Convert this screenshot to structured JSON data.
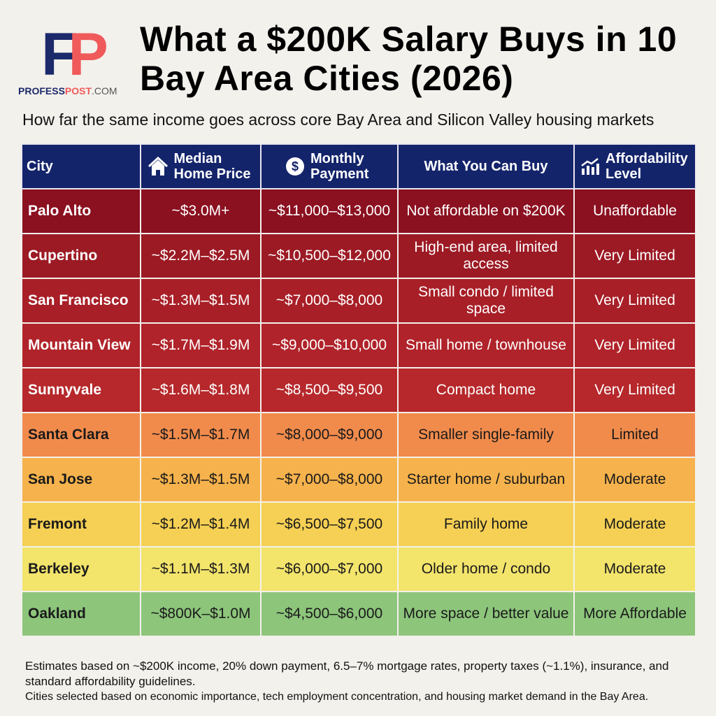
{
  "logo": {
    "mark": "FP",
    "site_a": "PROFESS",
    "site_b": "POST",
    ".com": ".COM"
  },
  "title": "What a $200K Salary Buys in 10 Bay Area Cities (2026)",
  "subtitle": "How far the same income goes across core Bay Area and Silicon Valley housing markets",
  "columns": [
    "City",
    "Median Home Price",
    "Monthly Payment",
    "What You Can Buy",
    "Affordability Level"
  ],
  "rows": [
    {
      "city": "Palo Alto",
      "price": "~$3.0M+",
      "payment": "~$11,000–$13,000",
      "buy": "Not affordable on $200K",
      "level": "Unaffordable",
      "bg": "#8b1020",
      "fg": "#ffffff"
    },
    {
      "city": "Cupertino",
      "price": "~$2.2M–$2.5M",
      "payment": "~$10,500–$12,000",
      "buy": "High-end area, limited access",
      "level": "Very Limited",
      "bg": "#9c1a24",
      "fg": "#ffffff"
    },
    {
      "city": "San Francisco",
      "price": "~$1.3M–$1.5M",
      "payment": "~$7,000–$8,000",
      "buy": "Small condo / limited space",
      "level": "Very Limited",
      "bg": "#a81f27",
      "fg": "#ffffff"
    },
    {
      "city": "Mountain View",
      "price": "~$1.7M–$1.9M",
      "payment": "~$9,000–$10,000",
      "buy": "Small home / townhouse",
      "level": "Very Limited",
      "bg": "#b0232a",
      "fg": "#ffffff"
    },
    {
      "city": "Sunnyvale",
      "price": "~$1.6M–$1.8M",
      "payment": "~$8,500–$9,500",
      "buy": "Compact home",
      "level": "Very Limited",
      "bg": "#b6282b",
      "fg": "#ffffff"
    },
    {
      "city": "Santa Clara",
      "price": "~$1.5M–$1.7M",
      "payment": "~$8,000–$9,000",
      "buy": "Smaller single-family",
      "level": "Limited",
      "bg": "#f18b4c",
      "fg": "#1a1a1a"
    },
    {
      "city": "San Jose",
      "price": "~$1.3M–$1.5M",
      "payment": "~$7,000–$8,000",
      "buy": "Starter home / suburban",
      "level": "Moderate",
      "bg": "#f6b24c",
      "fg": "#1a1a1a"
    },
    {
      "city": "Fremont",
      "price": "~$1.2M–$1.4M",
      "payment": "~$6,500–$7,500",
      "buy": "Family home",
      "level": "Moderate",
      "bg": "#f6d054",
      "fg": "#1a1a1a"
    },
    {
      "city": "Berkeley",
      "price": "~$1.1M–$1.3M",
      "payment": "~$6,000–$7,000",
      "buy": "Older home / condo",
      "level": "Moderate",
      "bg": "#f3e46c",
      "fg": "#1a1a1a"
    },
    {
      "city": "Oakland",
      "price": "~$800K–$1.0M",
      "payment": "~$4,500–$6,000",
      "buy": "More space / better value",
      "level": "More Affordable",
      "bg": "#8dc57b",
      "fg": "#1a1a1a"
    }
  ],
  "footnotes": [
    "Estimates based on ~$200K income, 20% down payment, 6.5–7% mortgage rates, property taxes (~1.1%), insurance, and standard affordability guidelines.",
    "Cities selected based on economic importance, tech employment concentration, and housing market demand in the Bay Area."
  ]
}
